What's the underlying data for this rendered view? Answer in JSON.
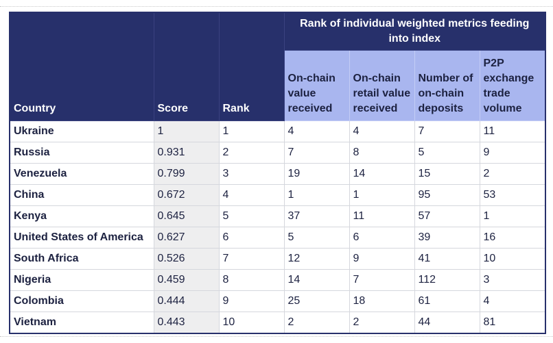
{
  "table": {
    "group_header": "Rank of individual weighted metrics feeding into index",
    "columns": {
      "country": "Country",
      "score": "Score",
      "rank": "Rank",
      "onchain_value": "On-chain value received",
      "onchain_retail": "On-chain retail value received",
      "deposits": "Number of on-chain deposits",
      "p2p": "P2P exchange trade volume"
    },
    "rows": [
      {
        "country": "Ukraine",
        "score": "1",
        "rank": "1",
        "onchain_value": "4",
        "onchain_retail": "4",
        "deposits": "7",
        "p2p": "11"
      },
      {
        "country": "Russia",
        "score": "0.931",
        "rank": "2",
        "onchain_value": "7",
        "onchain_retail": "8",
        "deposits": "5",
        "p2p": "9"
      },
      {
        "country": "Venezuela",
        "score": "0.799",
        "rank": "3",
        "onchain_value": "19",
        "onchain_retail": "14",
        "deposits": "15",
        "p2p": "2"
      },
      {
        "country": "China",
        "score": "0.672",
        "rank": "4",
        "onchain_value": "1",
        "onchain_retail": "1",
        "deposits": "95",
        "p2p": "53"
      },
      {
        "country": "Kenya",
        "score": "0.645",
        "rank": "5",
        "onchain_value": "37",
        "onchain_retail": "11",
        "deposits": "57",
        "p2p": "1"
      },
      {
        "country": "United States of America",
        "score": "0.627",
        "rank": "6",
        "onchain_value": "5",
        "onchain_retail": "6",
        "deposits": "39",
        "p2p": "16"
      },
      {
        "country": "South Africa",
        "score": "0.526",
        "rank": "7",
        "onchain_value": "12",
        "onchain_retail": "9",
        "deposits": "41",
        "p2p": "10"
      },
      {
        "country": "Nigeria",
        "score": "0.459",
        "rank": "8",
        "onchain_value": "14",
        "onchain_retail": "7",
        "deposits": "112",
        "p2p": "3"
      },
      {
        "country": "Colombia",
        "score": "0.444",
        "rank": "9",
        "onchain_value": "25",
        "onchain_retail": "18",
        "deposits": "61",
        "p2p": "4"
      },
      {
        "country": "Vietnam",
        "score": "0.443",
        "rank": "10",
        "onchain_value": "2",
        "onchain_retail": "2",
        "deposits": "44",
        "p2p": "81"
      }
    ]
  },
  "colors": {
    "header_dark": "#27306b",
    "header_light": "#a9b6ef",
    "score_cell": "#eeeeef",
    "text": "#1c2140"
  }
}
